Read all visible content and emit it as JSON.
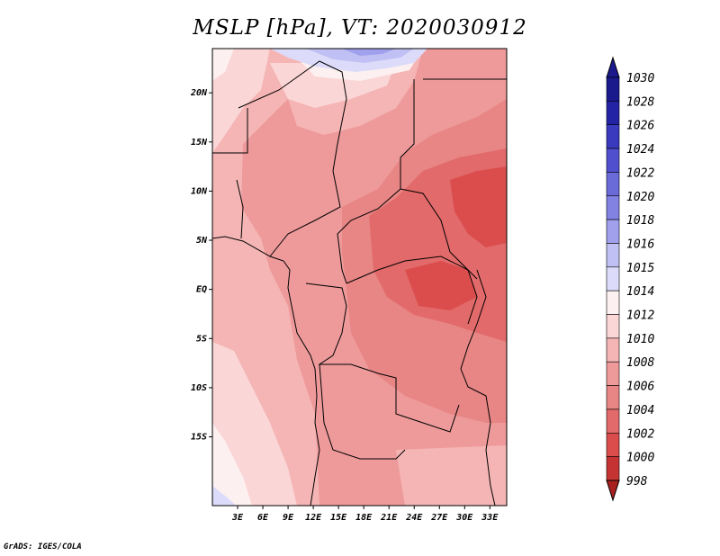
{
  "title": "MSLP [hPa], VT: 2020030912",
  "footer": "GrADS: IGES/COLA",
  "map": {
    "lon_range": [
      0,
      35
    ],
    "lat_range": [
      -22,
      24.5
    ],
    "lat_labels": [
      {
        "text": "20N",
        "lat": 20
      },
      {
        "text": "15N",
        "lat": 15
      },
      {
        "text": "10N",
        "lat": 10
      },
      {
        "text": "5N",
        "lat": 5
      },
      {
        "text": "EQ",
        "lat": 0
      },
      {
        "text": "5S",
        "lat": -5
      },
      {
        "text": "10S",
        "lat": -10
      },
      {
        "text": "15S",
        "lat": -15
      }
    ],
    "lon_labels": [
      {
        "text": "3E",
        "lon": 3
      },
      {
        "text": "6E",
        "lon": 6
      },
      {
        "text": "9E",
        "lon": 9
      },
      {
        "text": "12E",
        "lon": 12
      },
      {
        "text": "15E",
        "lon": 15
      },
      {
        "text": "18E",
        "lon": 18
      },
      {
        "text": "21E",
        "lon": 21
      },
      {
        "text": "24E",
        "lon": 24
      },
      {
        "text": "27E",
        "lon": 27
      },
      {
        "text": "30E",
        "lon": 30
      },
      {
        "text": "33E",
        "lon": 33
      }
    ]
  },
  "colorbar": {
    "levels": [
      {
        "label": "1030",
        "color": "#1a1a8c"
      },
      {
        "label": "1028",
        "color": "#2323a6"
      },
      {
        "label": "1026",
        "color": "#3a3abf"
      },
      {
        "label": "1024",
        "color": "#5050cf"
      },
      {
        "label": "1022",
        "color": "#6a6ad9"
      },
      {
        "label": "1020",
        "color": "#8282e3"
      },
      {
        "label": "1018",
        "color": "#a0a0ec"
      },
      {
        "label": "1016",
        "color": "#c0c0f4"
      },
      {
        "label": "1015",
        "color": "#dcdcfa"
      },
      {
        "label": "1014",
        "color": "#fdf0f0"
      },
      {
        "label": "1012",
        "color": "#fbd6d6"
      },
      {
        "label": "1010",
        "color": "#f5b5b5"
      },
      {
        "label": "1008",
        "color": "#ee9a9a"
      },
      {
        "label": "1006",
        "color": "#e88585"
      },
      {
        "label": "1004",
        "color": "#e26a6a"
      },
      {
        "label": "1002",
        "color": "#db4d4d"
      },
      {
        "label": "1000",
        "color": "#c53333"
      },
      {
        "label": "998",
        "color": "#b02525"
      }
    ],
    "top_color": "#1a1a8c",
    "bottom_color": "#a82020"
  }
}
